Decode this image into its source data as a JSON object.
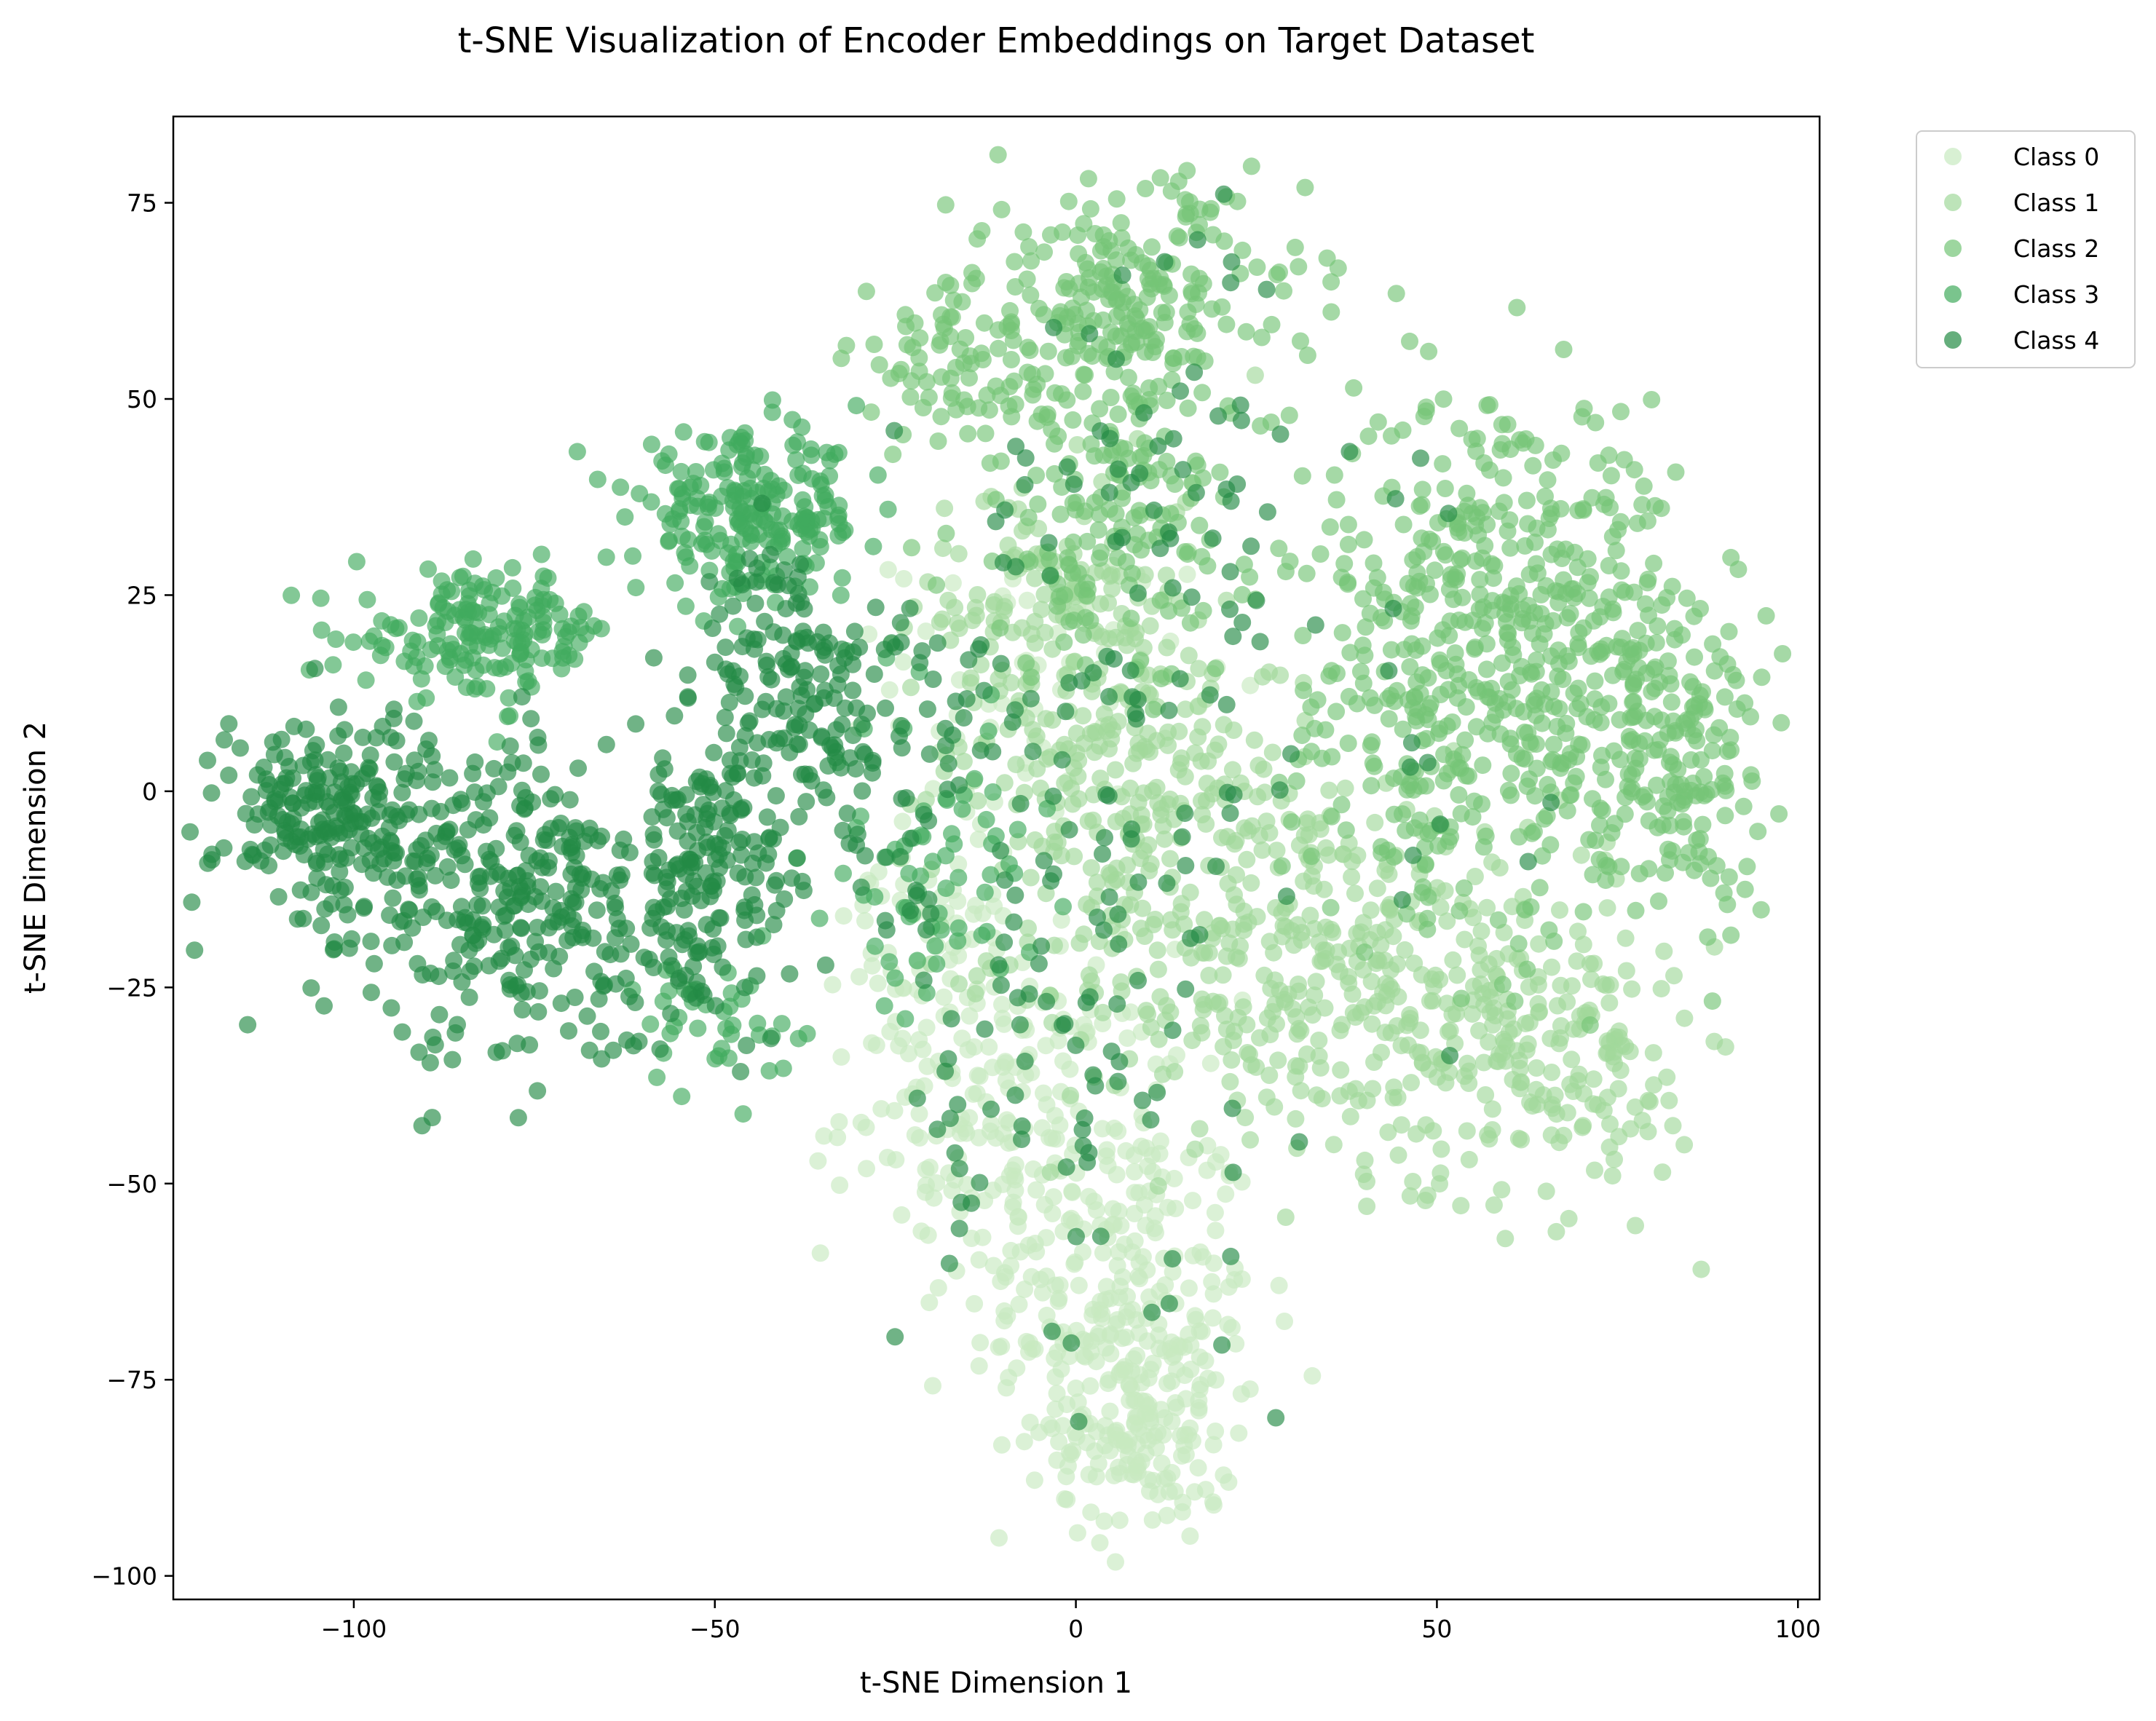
{
  "chart_data": {
    "type": "scatter",
    "title": "t-SNE Visualization of Encoder Embeddings on Target Dataset",
    "xlabel": "t-SNE Dimension 1",
    "ylabel": "t-SNE Dimension 2",
    "xlim": [
      -125,
      103
    ],
    "ylim": [
      -103,
      86
    ],
    "xticks": [
      -100,
      -50,
      0,
      50,
      100
    ],
    "yticks": [
      -100,
      -75,
      -50,
      -25,
      0,
      25,
      50,
      75
    ],
    "xtick_labels": [
      "−100",
      "−50",
      "0",
      "50",
      "100"
    ],
    "ytick_labels": [
      "−100",
      "−75",
      "−50",
      "−25",
      "0",
      "25",
      "50",
      "75"
    ],
    "grid": false,
    "legend_position": "outside-top-right",
    "series": [
      {
        "name": "Class 0",
        "color": "#c7e9c0",
        "clusters": [
          {
            "cx": 5,
            "cy": -65,
            "sx": 10,
            "sy": 13,
            "n": 260
          },
          {
            "cx": 10,
            "cy": -82,
            "sx": 6,
            "sy": 7,
            "n": 120
          },
          {
            "cx": -10,
            "cy": -40,
            "sx": 11,
            "sy": 10,
            "n": 180
          },
          {
            "cx": -20,
            "cy": -15,
            "sx": 6,
            "sy": 10,
            "n": 60
          },
          {
            "cx": -5,
            "cy": 15,
            "sx": 10,
            "sy": 8,
            "n": 60
          }
        ]
      },
      {
        "name": "Class 1",
        "color": "#a1d99b",
        "clusters": [
          {
            "cx": 5,
            "cy": 5,
            "sx": 12,
            "sy": 14,
            "n": 260
          },
          {
            "cx": 25,
            "cy": -20,
            "sx": 14,
            "sy": 12,
            "n": 240
          },
          {
            "cx": 50,
            "cy": -25,
            "sx": 12,
            "sy": 12,
            "n": 220
          },
          {
            "cx": 70,
            "cy": -35,
            "sx": 8,
            "sy": 9,
            "n": 120
          },
          {
            "cx": -5,
            "cy": 25,
            "sx": 9,
            "sy": 8,
            "n": 80
          }
        ]
      },
      {
        "name": "Class 2",
        "color": "#74c476",
        "clusters": [
          {
            "cx": 60,
            "cy": 30,
            "sx": 12,
            "sy": 11,
            "n": 260
          },
          {
            "cx": 70,
            "cy": 5,
            "sx": 14,
            "sy": 12,
            "n": 260
          },
          {
            "cx": 85,
            "cy": 5,
            "sx": 5,
            "sy": 9,
            "n": 90
          },
          {
            "cx": 45,
            "cy": 10,
            "sx": 8,
            "sy": 12,
            "n": 120
          },
          {
            "cx": 8,
            "cy": 62,
            "sx": 12,
            "sy": 8,
            "n": 220
          },
          {
            "cx": 5,
            "cy": 35,
            "sx": 11,
            "sy": 10,
            "n": 160
          },
          {
            "cx": -15,
            "cy": 55,
            "sx": 8,
            "sy": 6,
            "n": 80
          }
        ]
      },
      {
        "name": "Class 3",
        "color": "#41ab5d",
        "clusters": [
          {
            "cx": -45,
            "cy": 35,
            "sx": 8,
            "sy": 5,
            "n": 220
          },
          {
            "cx": -82,
            "cy": 20,
            "sx": 9,
            "sy": 4,
            "n": 170
          },
          {
            "cx": -20,
            "cy": -10,
            "sx": 7,
            "sy": 9,
            "n": 70
          },
          {
            "cx": -50,
            "cy": -30,
            "sx": 5,
            "sy": 4,
            "n": 40
          }
        ]
      },
      {
        "name": "Class 4",
        "color": "#238b45",
        "clusters": [
          {
            "cx": -103,
            "cy": -3,
            "sx": 8,
            "sy": 7,
            "n": 240
          },
          {
            "cx": -75,
            "cy": -15,
            "sx": 11,
            "sy": 10,
            "n": 300
          },
          {
            "cx": -50,
            "cy": -10,
            "sx": 6,
            "sy": 9,
            "n": 160
          },
          {
            "cx": -40,
            "cy": 15,
            "sx": 6,
            "sy": 8,
            "n": 120
          },
          {
            "cx": -25,
            "cy": 5,
            "sx": 8,
            "sy": 10,
            "n": 60
          },
          {
            "cx": -5,
            "cy": -25,
            "sx": 14,
            "sy": 22,
            "n": 110
          },
          {
            "cx": 10,
            "cy": 40,
            "sx": 12,
            "sy": 18,
            "n": 70
          },
          {
            "cx": 35,
            "cy": 10,
            "sx": 25,
            "sy": 25,
            "n": 40
          }
        ]
      }
    ]
  }
}
